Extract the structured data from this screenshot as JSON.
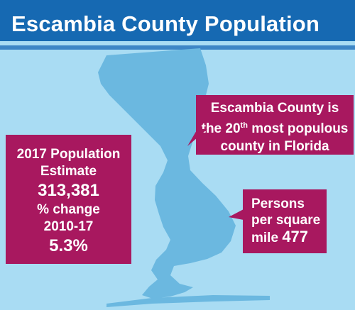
{
  "header": {
    "title": "Escambia County Population"
  },
  "rank_callout": {
    "line1": "Escambia County is",
    "pre": "the ",
    "rank": "20",
    "rank_suffix": "th",
    "post": " most populous",
    "line3": "county in Florida"
  },
  "stats_callout": {
    "label1": "2017 Population",
    "label2": "Estimate",
    "population": "313,381",
    "change_label1": "% change",
    "change_label2": "2010-17",
    "change": "5.3%"
  },
  "density_callout": {
    "line1": "Persons",
    "line2": "per square",
    "line3_pre": "mile ",
    "value": "477"
  },
  "colors": {
    "header_bg": "#1669b2",
    "background": "#a9dcf3",
    "county": "#6bb8e0",
    "callout_bg": "#a8185f"
  }
}
